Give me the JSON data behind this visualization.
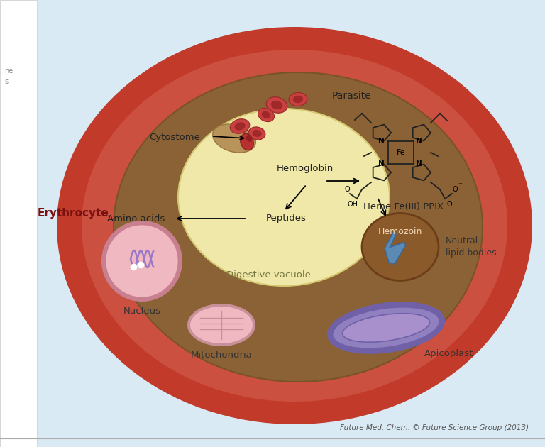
{
  "bg_color": "#daeaf4",
  "left_panel_color": "#ffffff",
  "erythrocyte_outer_color": "#c13a2a",
  "erythrocyte_mid_color": "#cc5040",
  "erythrocyte_inner_color": "#c84535",
  "parasite_bg_color": "#8b6235",
  "parasite_edge_color": "#7a5228",
  "digestive_vacuole_color": "#f0e8a8",
  "digestive_vacuole_edge": "#d4c870",
  "hemozoin_color": "#8b5a2b",
  "hemozoin_edge": "#6b3e18",
  "nucleus_fill": "#f0b8c0",
  "nucleus_edge": "#c88090",
  "nucleus_inner": "#e8a0b0",
  "mito_fill": "#f0b8c0",
  "mito_edge": "#c89098",
  "apicoplast_outer": "#7060a8",
  "apicoplast_mid": "#9080c0",
  "apicoplast_inner": "#a890cc",
  "rbc_fill": "#c84040",
  "rbc_edge": "#982828",
  "crystal_fill": "#5b8ab5",
  "crystal_edge": "#3a6a95",
  "citation": "Future Med. Chem. © Future Science Group (2013)",
  "label_erythrocyte": "Erythrocyte",
  "label_parasite": "Parasite",
  "label_cytostome": "Cytostome",
  "label_hemoglobin": "Hemoglobin",
  "label_heme": "Heme Fe(III) PPIX",
  "label_peptides": "Peptides",
  "label_amino_acids": "Amino acids",
  "label_digestive": "Digestive vacuole",
  "label_hemozoin": "Hemozoin",
  "label_neutral": "Neutral\nlipid bodies",
  "label_nucleus": "Nucleus",
  "label_mito": "Mitochondria",
  "label_apicoplast": "Apicoplast",
  "fig_w": 7.68,
  "fig_h": 6.3,
  "dpi": 100
}
